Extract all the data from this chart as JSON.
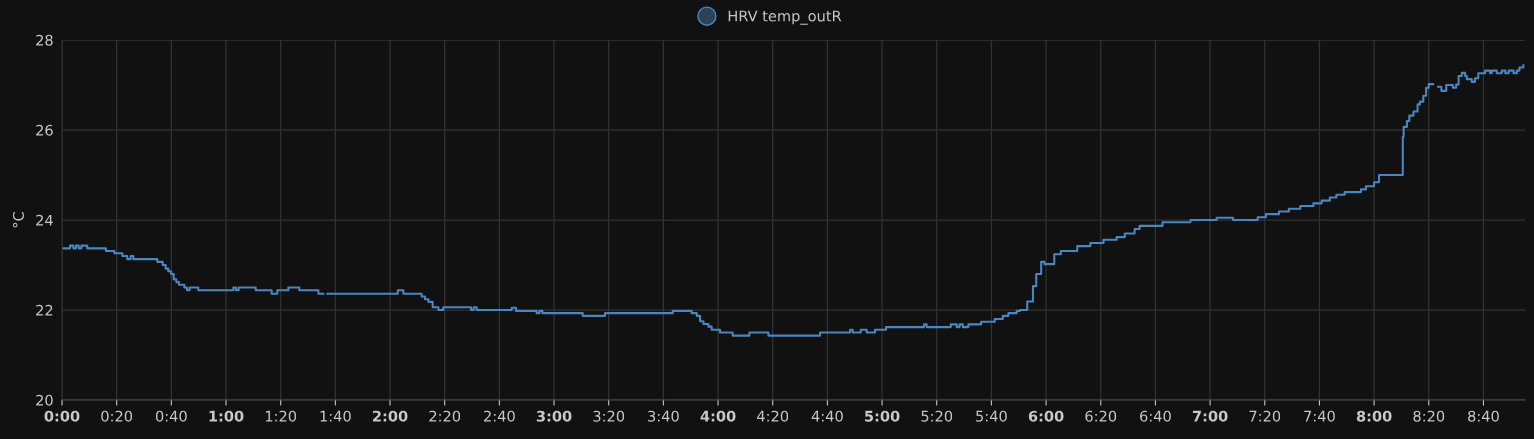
{
  "chart_data": {
    "type": "step",
    "ylabel": "°C",
    "xlim": [
      0,
      8.92
    ],
    "ylim": [
      20,
      28
    ],
    "yticks": [
      20,
      22,
      24,
      26,
      28
    ],
    "xticks": [
      {
        "value": 0,
        "label": "0:00"
      },
      {
        "value": 0.3333,
        "label": "0:20"
      },
      {
        "value": 0.6667,
        "label": "0:40"
      },
      {
        "value": 1,
        "label": "1:00"
      },
      {
        "value": 1.3333,
        "label": "1:20"
      },
      {
        "value": 1.6667,
        "label": "1:40"
      },
      {
        "value": 2,
        "label": "2:00"
      },
      {
        "value": 2.3333,
        "label": "2:20"
      },
      {
        "value": 2.6667,
        "label": "2:40"
      },
      {
        "value": 3,
        "label": "3:00"
      },
      {
        "value": 3.3333,
        "label": "3:20"
      },
      {
        "value": 3.6667,
        "label": "3:40"
      },
      {
        "value": 4,
        "label": "4:00"
      },
      {
        "value": 4.3333,
        "label": "4:20"
      },
      {
        "value": 4.6667,
        "label": "4:40"
      },
      {
        "value": 5,
        "label": "5:00"
      },
      {
        "value": 5.3333,
        "label": "5:20"
      },
      {
        "value": 5.6667,
        "label": "5:40"
      },
      {
        "value": 6,
        "label": "6:00"
      },
      {
        "value": 6.3333,
        "label": "6:20"
      },
      {
        "value": 6.6667,
        "label": "6:40"
      },
      {
        "value": 7,
        "label": "7:00"
      },
      {
        "value": 7.3333,
        "label": "7:20"
      },
      {
        "value": 7.6667,
        "label": "7:40"
      },
      {
        "value": 8,
        "label": "8:00"
      },
      {
        "value": 8.3333,
        "label": "8:20"
      },
      {
        "value": 8.6667,
        "label": "8:40"
      }
    ],
    "grid": true,
    "legend": "top",
    "marker": "none",
    "line_style": "solid",
    "series": [
      {
        "name": "HRV temp_outR",
        "color": "#4a86c0",
        "x": [
          0,
          0.049,
          0.069,
          0.085,
          0.102,
          0.118,
          0.154,
          0.268,
          0.319,
          0.368,
          0.398,
          0.419,
          0.435,
          0.581,
          0.614,
          0.632,
          0.648,
          0.665,
          0.681,
          0.697,
          0.713,
          0.746,
          0.762,
          0.778,
          0.831,
          1.045,
          1.061,
          1.077,
          1.181,
          1.278,
          1.313,
          1.38,
          1.447,
          1.563,
          1.593,
          1.618,
          2.047,
          2.081,
          2.193,
          2.213,
          2.234,
          2.26,
          2.295,
          2.325,
          2.494,
          2.51,
          2.528,
          2.742,
          2.768,
          2.894,
          2.911,
          2.929,
          3.175,
          3.311,
          3.724,
          3.839,
          3.87,
          3.89,
          3.911,
          3.941,
          3.961,
          4.012,
          4.089,
          4.191,
          4.307,
          4.622,
          4.805,
          4.821,
          4.87,
          4.906,
          4.957,
          5.024,
          5.256,
          5.272,
          5.419,
          5.455,
          5.472,
          5.492,
          5.526,
          5.604,
          5.687,
          5.736,
          5.77,
          5.821,
          5.84,
          5.885,
          5.92,
          5.94,
          5.97,
          5.99,
          6.05,
          6.09,
          6.19,
          6.27,
          6.35,
          6.43,
          6.48,
          6.54,
          6.57,
          6.71,
          6.88,
          7.04,
          7.14,
          7.29,
          7.34,
          7.42,
          7.48,
          7.55,
          7.63,
          7.68,
          7.73,
          7.77,
          7.82,
          7.92,
          7.95,
          8.0,
          8.03,
          8.175,
          8.18,
          8.2,
          8.215,
          8.24,
          8.265,
          8.28,
          8.3,
          8.317,
          8.333,
          8.36,
          8.39,
          8.41,
          8.44,
          8.48,
          8.5,
          8.515,
          8.535,
          8.555,
          8.565,
          8.595,
          8.615,
          8.635,
          8.677,
          8.707,
          8.717,
          8.748,
          8.778,
          8.8,
          8.82,
          8.85,
          8.87,
          8.886,
          8.91
        ],
        "values": [
          23.37,
          23.43,
          23.37,
          23.43,
          23.37,
          23.43,
          23.37,
          23.31,
          23.26,
          23.2,
          23.13,
          23.2,
          23.13,
          23.07,
          23.0,
          22.92,
          22.86,
          22.8,
          22.68,
          22.62,
          22.56,
          22.5,
          22.44,
          22.5,
          22.44,
          22.5,
          22.44,
          22.5,
          22.44,
          22.36,
          22.44,
          22.5,
          22.44,
          22.36,
          null,
          22.36,
          22.44,
          22.36,
          22.3,
          22.24,
          22.18,
          22.06,
          22.0,
          22.06,
          22.0,
          22.06,
          22.0,
          22.05,
          21.98,
          21.93,
          21.98,
          21.93,
          21.87,
          21.93,
          21.98,
          21.93,
          21.87,
          21.75,
          21.69,
          21.63,
          21.56,
          21.5,
          21.43,
          21.5,
          21.43,
          21.5,
          21.56,
          21.5,
          21.56,
          21.5,
          21.56,
          21.62,
          21.68,
          21.62,
          21.68,
          21.62,
          21.68,
          21.62,
          21.68,
          21.74,
          21.8,
          21.87,
          21.93,
          21.98,
          22.0,
          22.19,
          22.53,
          22.8,
          23.07,
          23.02,
          23.24,
          23.31,
          23.42,
          23.49,
          23.56,
          23.62,
          23.7,
          23.8,
          23.87,
          23.95,
          24.0,
          24.05,
          24.0,
          24.06,
          24.13,
          24.19,
          24.25,
          24.31,
          24.37,
          24.43,
          24.5,
          24.56,
          24.62,
          24.68,
          24.75,
          24.84,
          25.0,
          25.85,
          26.07,
          26.2,
          26.32,
          26.41,
          26.57,
          26.63,
          26.76,
          26.94,
          27.02,
          null,
          26.96,
          26.87,
          27.0,
          26.94,
          27.01,
          27.2,
          27.27,
          27.2,
          27.13,
          27.07,
          27.15,
          27.26,
          27.32,
          27.26,
          27.32,
          27.26,
          27.32,
          27.26,
          27.32,
          27.26,
          27.32,
          27.39,
          27.44
        ]
      }
    ]
  }
}
